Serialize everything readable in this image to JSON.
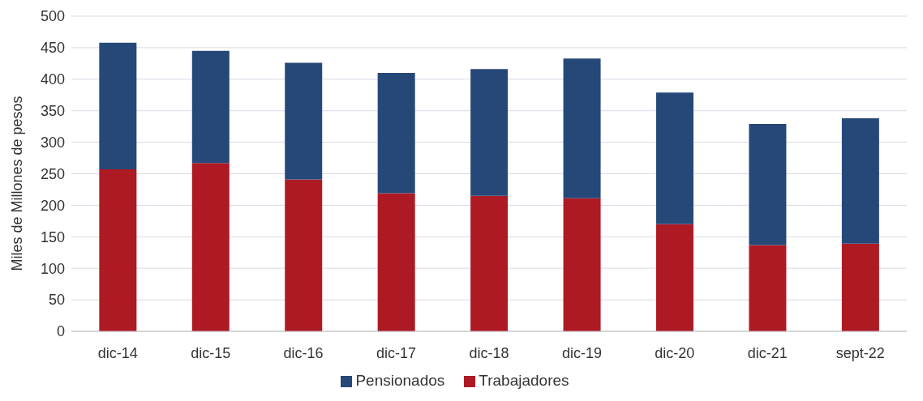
{
  "chart_data": {
    "type": "bar",
    "ylabel": "Miles de Millones de pesos",
    "categories": [
      "dic-14",
      "dic-15",
      "dic-16",
      "dic-17",
      "dic-18",
      "dic-19",
      "dic-20",
      "dic-21",
      "sept-22"
    ],
    "series": [
      {
        "name": "Trabajadores",
        "color": "#ae1a24",
        "values": [
          257,
          267,
          241,
          219,
          215,
          211,
          170,
          137,
          139
        ]
      },
      {
        "name": "Pensionados",
        "color": "#264878",
        "values": [
          201,
          178,
          185,
          191,
          201,
          222,
          209,
          192,
          199
        ]
      }
    ],
    "stacked": true,
    "ylim": [
      0,
      500
    ],
    "yticks": [
      0,
      50,
      100,
      150,
      200,
      250,
      300,
      350,
      400,
      450,
      500
    ],
    "grid": "y",
    "legend": "bottom"
  }
}
